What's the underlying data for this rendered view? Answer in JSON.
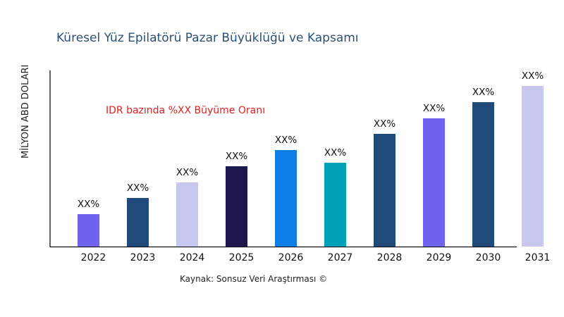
{
  "chart_data": {
    "type": "bar",
    "title": "Küresel Yüz Epilatörü Pazar Büyüklüğü ve Kapsamı",
    "ylabel": "MİLYON ABD DOLARI",
    "xlabel": "",
    "annotation": "IDR bazında %XX Büyüme Oranı",
    "source": "Kaynak: Sonsuz Veri Araştırması ©",
    "categories": [
      "2022",
      "2023",
      "2024",
      "2025",
      "2026",
      "2027",
      "2028",
      "2029",
      "2030",
      "2031"
    ],
    "values": [
      46,
      69,
      91,
      114,
      137,
      119,
      160,
      182,
      205,
      228
    ],
    "value_note": "relative heights; no y-axis scale printed",
    "data_labels": [
      "XX%",
      "XX%",
      "XX%",
      "XX%",
      "XX%",
      "XX%",
      "XX%",
      "XX%",
      "XX%",
      "XX%"
    ],
    "colors": [
      "#7063f0",
      "#1f4a7a",
      "#c8c8ee",
      "#1e1850",
      "#0f7de6",
      "#00a0b8",
      "#1f4a7a",
      "#7063f0",
      "#1f4a7a",
      "#c8c8ee"
    ],
    "ylim": [
      0,
      250
    ],
    "grid": false,
    "legend": "none"
  }
}
